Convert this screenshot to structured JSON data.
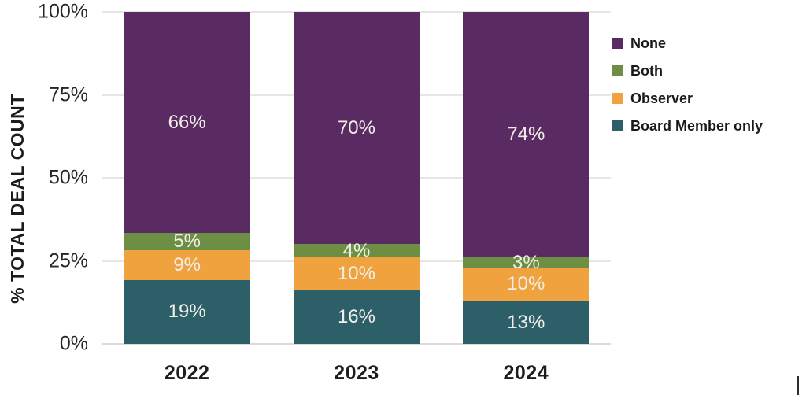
{
  "chart_data": {
    "type": "bar",
    "stacked": true,
    "title": "",
    "xlabel": "",
    "ylabel": "% TOTAL DEAL COUNT",
    "categories": [
      "2022",
      "2023",
      "2024"
    ],
    "series": [
      {
        "name": "None",
        "color": "#5A2B63",
        "values": [
          66,
          70,
          74
        ]
      },
      {
        "name": "Both",
        "color": "#6C8F43",
        "values": [
          5,
          4,
          3
        ]
      },
      {
        "name": "Observer",
        "color": "#F0A23E",
        "values": [
          9,
          10,
          10
        ]
      },
      {
        "name": "Board Member only",
        "color": "#2D5F69",
        "values": [
          19,
          16,
          13
        ]
      }
    ],
    "yticks": [
      {
        "label": "0%",
        "value": 0
      },
      {
        "label": "25%",
        "value": 25
      },
      {
        "label": "50%",
        "value": 50
      },
      {
        "label": "75%",
        "value": 75
      },
      {
        "label": "100%",
        "value": 100
      }
    ],
    "ylim": [
      0,
      100
    ],
    "grid": true,
    "legend_position": "right",
    "value_suffix": "%",
    "bar_label_color": "#F2EFE9"
  }
}
